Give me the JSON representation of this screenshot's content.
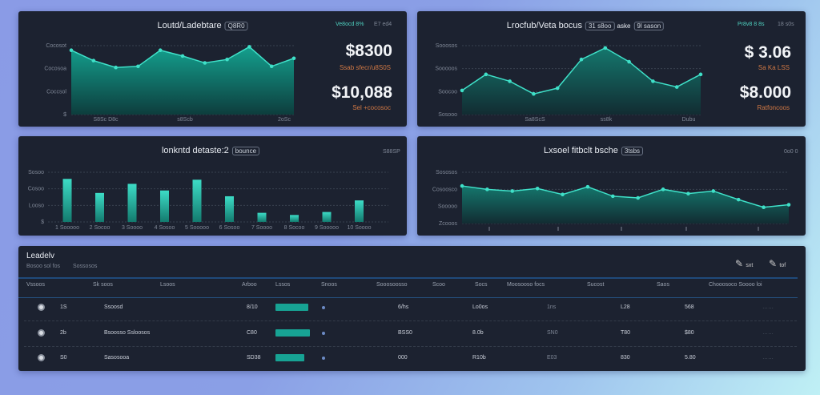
{
  "colors": {
    "accent": "#2ec4b0",
    "panel": "#1c2230",
    "orange": "#d07844"
  },
  "panel1": {
    "title": "Loutd/Ladebtare",
    "chip": "Q8R0",
    "top_right": [
      "Ve8ocd 8%",
      "E7 ed4"
    ],
    "stat1": "$8300",
    "stat1_sub": "Ssab sfecr/u8S0S",
    "stat2": "$10,088",
    "stat2_sub": "Sel +cocosoc",
    "chart_data": {
      "type": "area",
      "ylim": [
        0,
        3
      ],
      "y_ticks": [
        "Cocosot",
        "Cocosoa",
        "Coccsol",
        "$"
      ],
      "x_ticks": [
        "S8Sc D8c",
        "s8Scb",
        "2oSc"
      ],
      "values": [
        2.8,
        2.35,
        2.05,
        2.1,
        2.8,
        2.55,
        2.25,
        2.4,
        2.95,
        2.1,
        2.45
      ]
    }
  },
  "panel2": {
    "title": "Lrocfub/Veta bocus",
    "chips": [
      "31 s8oo",
      "9l sason"
    ],
    "mid": "aske",
    "top_right": [
      "Pr8v8 8 8s",
      "18 s0s"
    ],
    "stat1": "$ 3.06",
    "stat1_sub": "Sa Ka LSS",
    "stat2": "$8.000",
    "stat2_sub": "Ratfoncoos",
    "chart_data": {
      "type": "area",
      "ylim": [
        0,
        3
      ],
      "y_ticks": [
        "Sooosos",
        "Sooooos",
        "Soocoo",
        "Sosooo"
      ],
      "x_ticks": [
        "Sa8ScS",
        "ss8k",
        "Dubu"
      ],
      "values": [
        1.05,
        1.75,
        1.45,
        0.9,
        1.15,
        2.4,
        2.9,
        2.3,
        1.45,
        1.2,
        1.75
      ]
    }
  },
  "panel3": {
    "title": "lonkntd detaste:2",
    "chip": "bounce",
    "top_right": "S88SP",
    "chart_data": {
      "type": "bar",
      "ylim": [
        0,
        3
      ],
      "y_ticks": [
        "Sosoo",
        "Cosoo",
        "Looso",
        "$"
      ],
      "categories": [
        "1 Sooooo",
        "2 Socoo",
        "3 Soooo",
        "4 Sosoo",
        "5 Sooooo",
        "6 Sosoo",
        "7 Soooo",
        "8 Socoo",
        "9 Sooooo",
        "10 Soooo"
      ],
      "values": [
        2.6,
        1.75,
        2.3,
        1.9,
        2.55,
        1.55,
        0.55,
        0.42,
        0.6,
        1.3
      ]
    }
  },
  "panel4": {
    "title": "Lxsoel fitbclt bsche",
    "chip": "3tsbs",
    "top_right": "0o0 0",
    "chart_data": {
      "type": "area",
      "ylim": [
        0,
        3
      ],
      "y_ticks": [
        "Sososos",
        "Cosoosco",
        "Sooooo",
        "Zcooos"
      ],
      "values": [
        2.2,
        2.0,
        1.9,
        2.05,
        1.7,
        2.15,
        1.6,
        1.5,
        2.0,
        1.75,
        1.9,
        1.4,
        0.95,
        1.1
      ]
    }
  },
  "table": {
    "title": "Leadelv",
    "subtitle": [
      "Bosoo sol fos",
      "Sossosos"
    ],
    "actions": [
      "sxt",
      "tof"
    ],
    "headers": [
      "Vssoos",
      "Sk soos",
      "Lsoos",
      "Arboo",
      "Lssos",
      "Snoos",
      "Sooosoosso",
      "Scoo",
      "Socs",
      "Moosooso focs",
      "Sucost",
      "Saos",
      "Chooosoco Soooo loi"
    ],
    "rows": [
      {
        "rank": "1S",
        "name": "Ssoosd",
        "amount": "8/10",
        "progress": 0.85,
        "c1": "6/hs",
        "c2": "Lo0os",
        "c3": "1ns",
        "c4": "L28",
        "c5": "568"
      },
      {
        "rank": "2b",
        "name": "Bsoosso Ssloosos",
        "amount": "C80",
        "progress": 0.9,
        "c1": "BSS0",
        "c2": "8.0b",
        "c3": "SN0",
        "c4": "T80",
        "c5": "$80"
      },
      {
        "rank": "S0",
        "name": "Sasosooa",
        "amount": "SD38",
        "progress": 0.75,
        "c1": "000",
        "c2": "R10b",
        "c3": "E03",
        "c4": "830",
        "c5": "5.80"
      }
    ]
  }
}
